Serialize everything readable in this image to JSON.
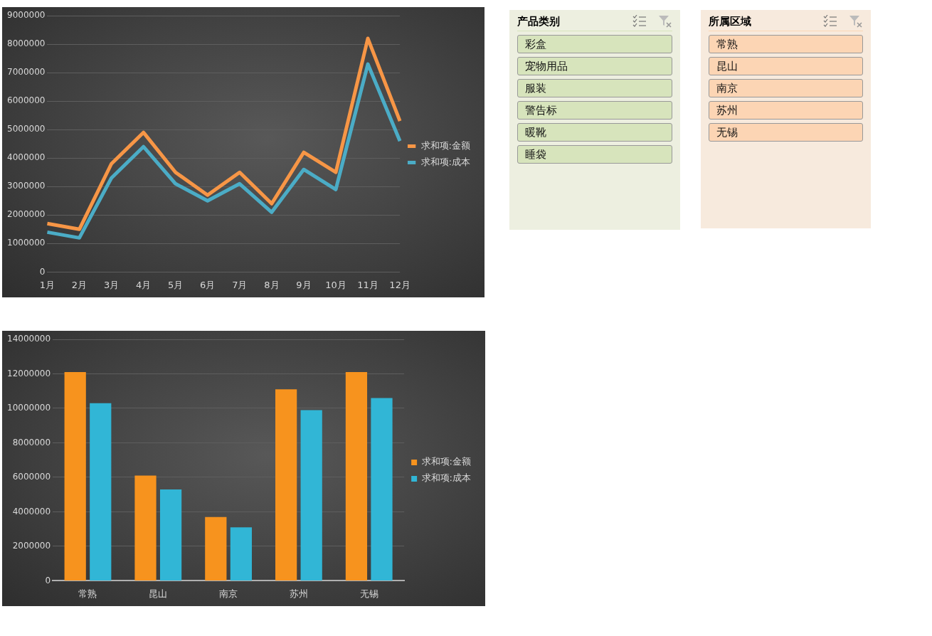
{
  "chart_data": [
    {
      "type": "line",
      "categories": [
        "1月",
        "2月",
        "3月",
        "4月",
        "5月",
        "6月",
        "7月",
        "8月",
        "9月",
        "10月",
        "11月",
        "12月"
      ],
      "series": [
        {
          "name": "求和项:金额",
          "color": "#f79646",
          "values": [
            1700000,
            1500000,
            3800000,
            4900000,
            3500000,
            2700000,
            3500000,
            2400000,
            4200000,
            3500000,
            8200000,
            5300000
          ]
        },
        {
          "name": "求和项:成本",
          "color": "#4bacc6",
          "values": [
            1400000,
            1200000,
            3300000,
            4400000,
            3100000,
            2500000,
            3100000,
            2100000,
            3600000,
            2900000,
            7300000,
            4600000
          ]
        }
      ],
      "ylim": [
        0,
        9000000
      ],
      "yticks": [
        0,
        1000000,
        2000000,
        3000000,
        4000000,
        5000000,
        6000000,
        7000000,
        8000000,
        9000000
      ],
      "grid": "y",
      "legend": "right",
      "marker": "none"
    },
    {
      "type": "bar",
      "categories": [
        "常熟",
        "昆山",
        "南京",
        "苏州",
        "无锡"
      ],
      "series": [
        {
          "name": "求和项:金额",
          "color": "#f7931e",
          "values": [
            12100000,
            6100000,
            3700000,
            11100000,
            12100000
          ]
        },
        {
          "name": "求和项:成本",
          "color": "#31b6d6",
          "values": [
            10300000,
            5300000,
            3100000,
            9900000,
            10600000
          ]
        }
      ],
      "ylim": [
        0,
        14000000
      ],
      "yticks": [
        0,
        2000000,
        4000000,
        6000000,
        8000000,
        10000000,
        12000000,
        14000000
      ],
      "grid": "y",
      "legend": "right"
    },
    {
      "type": "other",
      "title": "产品类别",
      "categories": [
        "彩盒",
        "宠物用品",
        "服装",
        "警告标",
        "暖靴",
        "睡袋"
      ],
      "color": "#d7e4bc"
    },
    {
      "type": "other",
      "title": "所属区域",
      "categories": [
        "常熟",
        "昆山",
        "南京",
        "苏州",
        "无锡"
      ],
      "color": "#fcd5b4"
    }
  ]
}
